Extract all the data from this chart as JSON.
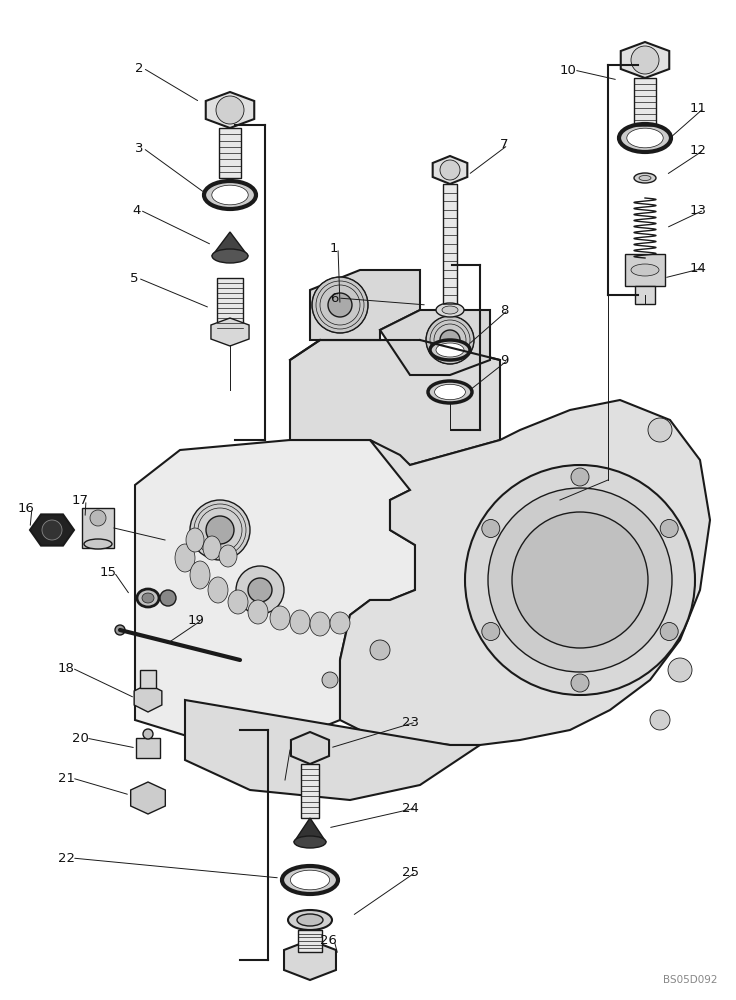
{
  "bg_color": "#ffffff",
  "fig_width": 7.36,
  "fig_height": 10.0,
  "dpi": 100,
  "watermark": "BS05D092",
  "lc": "#1a1a1a",
  "fc_white": "#ffffff",
  "fc_light": "#f0f0f0",
  "fc_mid": "#d8d8d8",
  "fc_dark": "#b0b0b0",
  "fc_black": "#222222"
}
